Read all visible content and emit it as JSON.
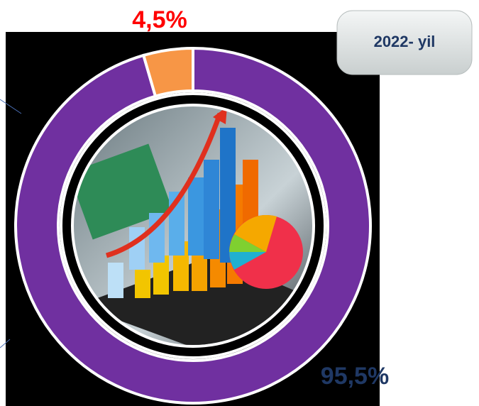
{
  "chart_data": {
    "type": "donut",
    "values": [
      95.5,
      4.5
    ],
    "value_labels": [
      "95,5%",
      "4,5%"
    ],
    "colors": [
      "#7030a0",
      "#f79646"
    ],
    "label_colors": [
      "#1f3864",
      "#ff0000"
    ]
  },
  "button": {
    "label": "2022- yil"
  }
}
